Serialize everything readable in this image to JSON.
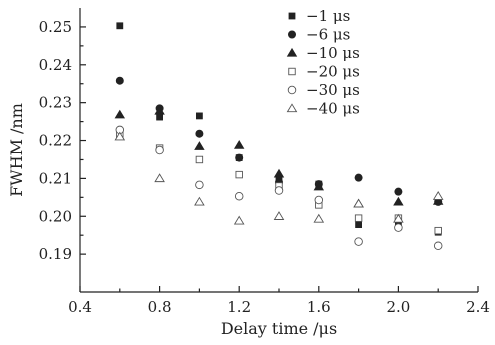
{
  "chart_data": {
    "type": "scatter",
    "xlabel": "Delay time /μs",
    "ylabel": "FWHM /nm",
    "xlim": [
      0.4,
      2.4
    ],
    "ylim": [
      0.18,
      0.255
    ],
    "x_ticks": [
      0.4,
      0.8,
      1.2,
      1.6,
      2.0,
      2.4
    ],
    "x_tick_labels": [
      "0.4",
      "0.8",
      "1.2",
      "1.6",
      "2.0",
      "2.4"
    ],
    "y_ticks": [
      0.19,
      0.2,
      0.21,
      0.22,
      0.23,
      0.24,
      0.25
    ],
    "y_tick_labels": [
      "0.19",
      "0.20",
      "0.21",
      "0.22",
      "0.23",
      "0.24",
      "0.25"
    ],
    "grid": false,
    "legend_position": "top-right",
    "x": [
      0.6,
      0.8,
      1.0,
      1.2,
      1.4,
      1.6,
      1.8,
      2.0,
      2.2
    ],
    "series": [
      {
        "name": "−1 μs",
        "marker": "square-filled",
        "values": [
          0.2503,
          0.2262,
          0.2265,
          0.2155,
          0.2095,
          0.2085,
          0.1978,
          0.1985,
          0.1958
        ]
      },
      {
        "name": "−6 μs",
        "marker": "circle-filled",
        "values": [
          0.2358,
          0.2285,
          0.2218,
          0.2155,
          0.209,
          0.2085,
          0.2102,
          0.2065,
          0.2038
        ]
      },
      {
        "name": "−10 μs",
        "marker": "triangle-filled",
        "values": [
          0.2268,
          0.2278,
          0.2185,
          0.2188,
          0.2112,
          0.2078,
          0.2033,
          0.2038,
          0.204
        ]
      },
      {
        "name": "−20 μs",
        "marker": "square-open",
        "values": [
          0.2215,
          0.218,
          0.215,
          0.211,
          0.208,
          0.203,
          0.1995,
          0.1995,
          0.1962
        ]
      },
      {
        "name": "−30 μs",
        "marker": "circle-open",
        "values": [
          0.2228,
          0.2175,
          0.2083,
          0.2053,
          0.2068,
          0.2043,
          0.1933,
          0.197,
          0.1922
        ]
      },
      {
        "name": "−40 μs",
        "marker": "triangle-open",
        "values": [
          0.221,
          0.21,
          0.2038,
          0.1988,
          0.2,
          0.1993,
          0.2033,
          0.1993,
          0.2053
        ]
      }
    ]
  }
}
